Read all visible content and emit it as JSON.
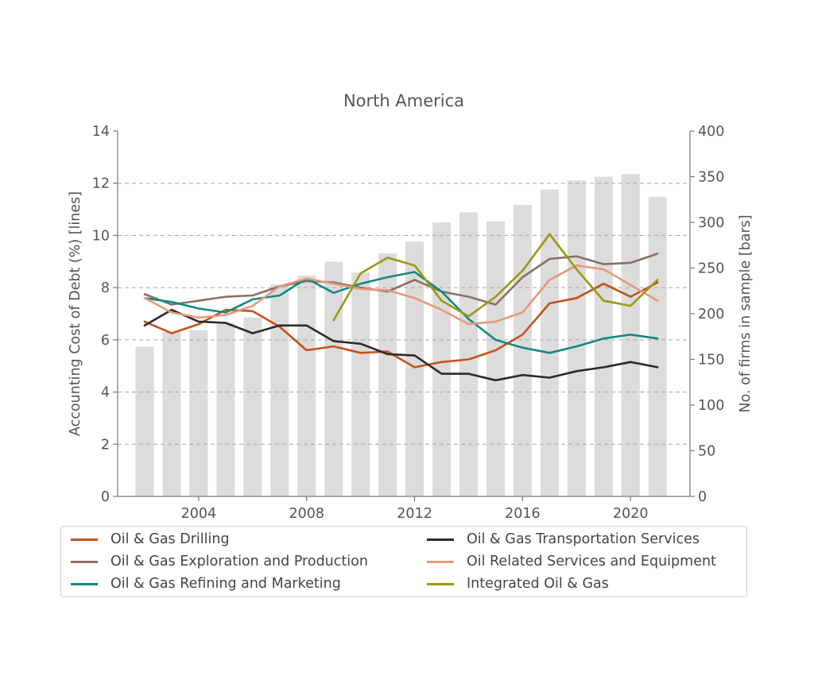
{
  "chart_data": {
    "type": "line",
    "title": "North America",
    "ylabel_left": "Accounting Cost of Debt (%)  [lines]",
    "ylabel_right": "No. of firms in sample  [bars]",
    "xlabel": "",
    "xlim": [
      2001,
      2022.2
    ],
    "ylim_left": [
      0,
      14
    ],
    "ylim_right": [
      0,
      400
    ],
    "xticks": [
      2004,
      2008,
      2012,
      2016,
      2020
    ],
    "yticks_left": [
      0,
      2,
      4,
      6,
      8,
      10,
      12,
      14
    ],
    "yticks_right": [
      0,
      50,
      100,
      150,
      200,
      250,
      300,
      350,
      400
    ],
    "grid": "horizontal dashed",
    "legend_position": "bottom",
    "bars": {
      "name": "No. of firms in sample",
      "color": "#dcdcdc",
      "x": [
        2002,
        2003,
        2004,
        2005,
        2006,
        2007,
        2008,
        2009,
        2010,
        2011,
        2012,
        2013,
        2014,
        2015,
        2016,
        2017,
        2018,
        2019,
        2020,
        2021
      ],
      "values": [
        164,
        180,
        182,
        190,
        196,
        232,
        242,
        257,
        245,
        266,
        279,
        300,
        311,
        301,
        319,
        336,
        346,
        350,
        353,
        328
      ]
    },
    "series": [
      {
        "name": "Oil & Gas Drilling",
        "color": "#c4521b",
        "x": [
          2002,
          2003,
          2004,
          2005,
          2006,
          2007,
          2008,
          2009,
          2010,
          2011,
          2012,
          2013,
          2014,
          2015,
          2016,
          2017,
          2018,
          2019,
          2020,
          2021
        ],
        "values": [
          6.7,
          6.25,
          6.6,
          7.15,
          7.1,
          6.5,
          5.6,
          5.75,
          5.5,
          5.55,
          4.95,
          5.15,
          5.25,
          5.6,
          6.2,
          7.4,
          7.6,
          8.15,
          7.65,
          8.2
        ]
      },
      {
        "name": "Oil & Gas Exploration and Production",
        "color": "#8c6f63",
        "x": [
          2002,
          2003,
          2004,
          2005,
          2006,
          2007,
          2008,
          2009,
          2010,
          2011,
          2012,
          2013,
          2014,
          2015,
          2016,
          2017,
          2018,
          2019,
          2020,
          2021
        ],
        "values": [
          7.75,
          7.35,
          7.5,
          7.65,
          7.7,
          8.05,
          8.25,
          8.2,
          8.0,
          7.85,
          8.3,
          7.85,
          7.65,
          7.35,
          8.4,
          9.1,
          9.2,
          8.9,
          8.95,
          9.3
        ]
      },
      {
        "name": "Oil & Gas Refining and Marketing",
        "color": "#138a80",
        "x": [
          2002,
          2003,
          2004,
          2005,
          2006,
          2007,
          2008,
          2009,
          2010,
          2011,
          2012,
          2013,
          2014,
          2015,
          2016,
          2017,
          2018,
          2019,
          2020,
          2021
        ],
        "values": [
          7.6,
          7.45,
          7.2,
          7.05,
          7.55,
          7.7,
          8.35,
          7.8,
          8.15,
          8.4,
          8.6,
          7.85,
          6.8,
          6.0,
          5.7,
          5.5,
          5.75,
          6.05,
          6.2,
          6.05
        ]
      },
      {
        "name": "Oil & Gas Transportation Services",
        "color": "#2b2b2b",
        "x": [
          2002,
          2003,
          2004,
          2005,
          2006,
          2007,
          2008,
          2009,
          2010,
          2011,
          2012,
          2013,
          2014,
          2015,
          2016,
          2017,
          2018,
          2019,
          2020,
          2021
        ],
        "values": [
          6.55,
          7.15,
          6.7,
          6.65,
          6.25,
          6.55,
          6.55,
          5.95,
          5.85,
          5.45,
          5.4,
          4.7,
          4.7,
          4.45,
          4.65,
          4.55,
          4.8,
          4.95,
          5.15,
          4.95
        ]
      },
      {
        "name": "Oil Related Services and Equipment",
        "color": "#e8997a",
        "x": [
          2002,
          2003,
          2004,
          2005,
          2006,
          2007,
          2008,
          2009,
          2010,
          2011,
          2012,
          2013,
          2014,
          2015,
          2016,
          2017,
          2018,
          2019,
          2020,
          2021
        ],
        "values": [
          7.6,
          7.05,
          6.85,
          6.95,
          7.3,
          8.05,
          8.35,
          8.15,
          7.95,
          7.9,
          7.6,
          7.15,
          6.6,
          6.7,
          7.05,
          8.3,
          8.85,
          8.7,
          8.1,
          7.5
        ]
      },
      {
        "name": "Integrated Oil & Gas",
        "color": "#9a9a14",
        "x": [
          2009,
          2010,
          2011,
          2012,
          2013,
          2014,
          2015,
          2016,
          2017,
          2018,
          2019,
          2020,
          2021
        ],
        "values": [
          6.75,
          8.55,
          9.15,
          8.85,
          7.5,
          6.9,
          7.65,
          8.65,
          10.05,
          8.7,
          7.5,
          7.3,
          8.3
        ]
      }
    ]
  }
}
